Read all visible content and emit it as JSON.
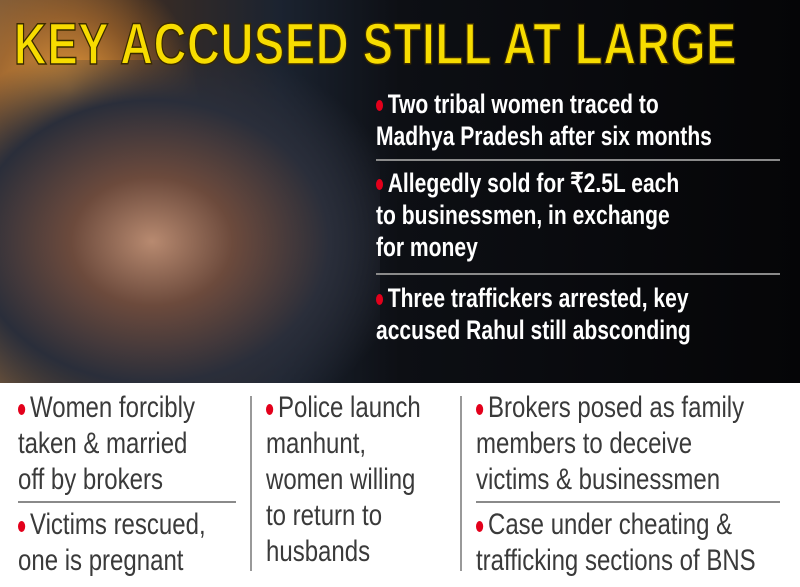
{
  "title": "KEY ACCUSED STILL AT LARGE",
  "colors": {
    "title": "#f7dc00",
    "bullet": "#e3001b",
    "background_top": "#050507",
    "body_text": "#3a3a3a"
  },
  "top_points": [
    {
      "lines": [
        "Two tribal women traced to",
        "Madhya Pradesh after six months"
      ]
    },
    {
      "lines": [
        "Allegedly sold for ₹2.5L each",
        "to businessmen, in exchange",
        "for money"
      ]
    },
    {
      "lines": [
        "Three traffickers arrested, key",
        "accused Rahul still absconding"
      ]
    }
  ],
  "bottom": {
    "col1": [
      {
        "lines": [
          "Women forcibly",
          "taken & married",
          "off by brokers"
        ]
      },
      {
        "lines": [
          "Victims rescued,",
          "one is pregnant"
        ]
      }
    ],
    "col2": [
      {
        "lines": [
          "Police launch",
          "manhunt,",
          "women willing",
          "to return to",
          "husbands"
        ]
      }
    ],
    "col3": [
      {
        "lines": [
          "Brokers posed as family",
          "members to deceive",
          "victims & businessmen"
        ]
      },
      {
        "lines": [
          "Case under cheating &",
          "trafficking sections of BNS"
        ]
      }
    ]
  }
}
